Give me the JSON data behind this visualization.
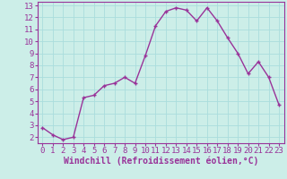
{
  "x": [
    0,
    1,
    2,
    3,
    4,
    5,
    6,
    7,
    8,
    9,
    10,
    11,
    12,
    13,
    14,
    15,
    16,
    17,
    18,
    19,
    20,
    21,
    22,
    23
  ],
  "y": [
    2.8,
    2.2,
    1.8,
    2.0,
    5.3,
    5.5,
    6.3,
    6.5,
    7.0,
    6.5,
    8.8,
    11.3,
    12.5,
    12.8,
    12.6,
    11.7,
    12.8,
    11.7,
    10.3,
    9.0,
    7.3,
    8.3,
    7.0,
    4.7
  ],
  "line_color": "#993399",
  "marker": "+",
  "marker_color": "#993399",
  "bg_color": "#cceee8",
  "grid_color": "#aadddd",
  "xlabel": "Windchill (Refroidissement éolien,°C)",
  "ylim": [
    1.5,
    13.3
  ],
  "xlim": [
    -0.5,
    23.5
  ],
  "yticks": [
    2,
    3,
    4,
    5,
    6,
    7,
    8,
    9,
    10,
    11,
    12,
    13
  ],
  "xticks": [
    0,
    1,
    2,
    3,
    4,
    5,
    6,
    7,
    8,
    9,
    10,
    11,
    12,
    13,
    14,
    15,
    16,
    17,
    18,
    19,
    20,
    21,
    22,
    23
  ],
  "label_color": "#993399",
  "tick_fontsize": 6.5,
  "xlabel_fontsize": 7.0,
  "linewidth": 1.0,
  "markersize": 3.5,
  "markeredgewidth": 1.0
}
